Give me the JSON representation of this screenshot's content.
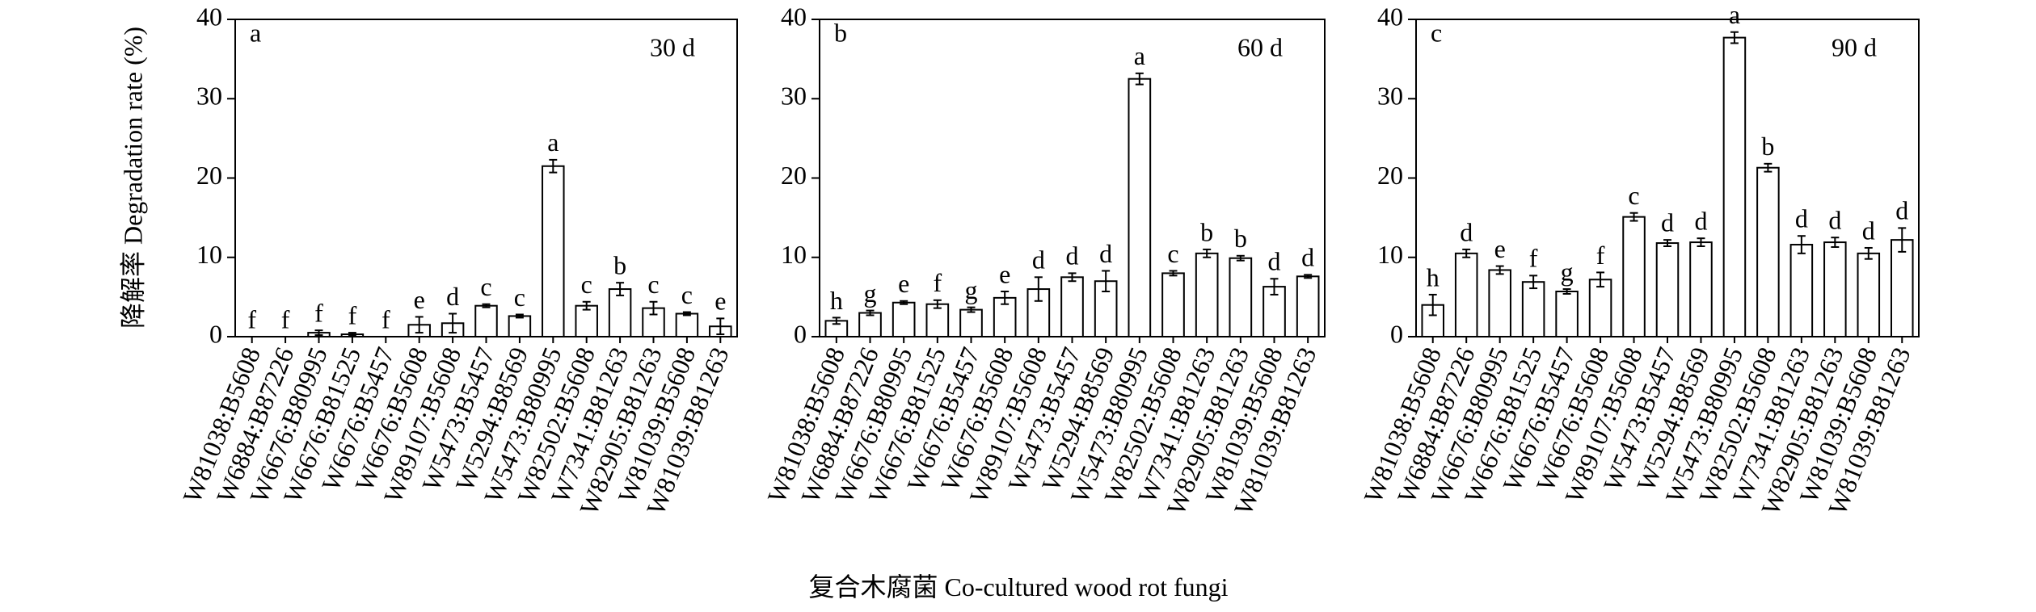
{
  "y_label": "降解率 Degradation rate (%)",
  "x_label": "复合木腐菌 Co-cultured wood rot fungi",
  "chart_data": [
    {
      "type": "bar",
      "panel": "a",
      "annotation": "30 d",
      "color": "#ffffff",
      "edge_color": "#000000",
      "categories": [
        "W81038:B5608",
        "W6884:B87226",
        "W6676:B80995",
        "W6676:B81525",
        "W6676:B5457",
        "W6676:B5608",
        "W89107:B5608",
        "W5473:B5457",
        "W5294:B8569",
        "W5473:B80995",
        "W82502:B5608",
        "W7341:B81263",
        "W82905:B81263",
        "W81039:B5608",
        "W81039:B81263"
      ],
      "values": [
        0,
        0,
        0.5,
        0.3,
        0,
        1.5,
        1.7,
        3.9,
        2.6,
        21.5,
        3.9,
        6.0,
        3.6,
        2.9,
        1.3
      ],
      "errors": [
        0,
        0,
        0.3,
        0.2,
        0,
        1.0,
        1.2,
        0.2,
        0.2,
        0.8,
        0.5,
        0.8,
        0.8,
        0.2,
        1.0
      ],
      "significance": [
        "f",
        "f",
        "f",
        "f",
        "f",
        "e",
        "d",
        "c",
        "c",
        "a",
        "c",
        "b",
        "c",
        "c",
        "e"
      ],
      "ylim": [
        0,
        40
      ],
      "yticks": [
        0,
        10,
        20,
        30,
        40
      ]
    },
    {
      "type": "bar",
      "panel": "b",
      "annotation": "60 d",
      "color": "#ffffff",
      "edge_color": "#000000",
      "categories": [
        "W81038:B5608",
        "W6884:B87226",
        "W6676:B80995",
        "W6676:B81525",
        "W6676:B5457",
        "W6676:B5608",
        "W89107:B5608",
        "W5473:B5457",
        "W5294:B8569",
        "W5473:B80995",
        "W82502:B5608",
        "W7341:B81263",
        "W82905:B81263",
        "W81039:B5608",
        "W81039:B81263"
      ],
      "values": [
        2.0,
        3.0,
        4.3,
        4.1,
        3.4,
        4.9,
        6.0,
        7.5,
        7.0,
        32.5,
        8.0,
        10.5,
        9.9,
        6.3,
        7.6
      ],
      "errors": [
        0.4,
        0.3,
        0.2,
        0.5,
        0.3,
        0.8,
        1.5,
        0.5,
        1.3,
        0.7,
        0.3,
        0.5,
        0.3,
        1.0,
        0.2
      ],
      "significance": [
        "h",
        "g",
        "e",
        "f",
        "g",
        "e",
        "d",
        "d",
        "d",
        "a",
        "c",
        "b",
        "b",
        "d",
        "d"
      ],
      "ylim": [
        0,
        40
      ],
      "yticks": [
        0,
        10,
        20,
        30,
        40
      ]
    },
    {
      "type": "bar",
      "panel": "c",
      "annotation": "90 d",
      "color": "#ffffff",
      "edge_color": "#000000",
      "categories": [
        "W81038:B5608",
        "W6884:B87226",
        "W6676:B80995",
        "W6676:B81525",
        "W6676:B5457",
        "W6676:B5608",
        "W89107:B5608",
        "W5473:B5457",
        "W5294:B8569",
        "W5473:B80995",
        "W82502:B5608",
        "W7341:B81263",
        "W82905:B81263",
        "W81039:B5608",
        "W81039:B81263"
      ],
      "values": [
        4.0,
        10.5,
        8.4,
        6.9,
        5.7,
        7.2,
        15.1,
        11.8,
        11.9,
        37.7,
        21.3,
        11.6,
        11.9,
        10.5,
        12.2
      ],
      "errors": [
        1.3,
        0.5,
        0.5,
        0.8,
        0.3,
        0.9,
        0.5,
        0.4,
        0.5,
        0.7,
        0.5,
        1.1,
        0.6,
        0.7,
        1.5
      ],
      "significance": [
        "h",
        "d",
        "e",
        "f",
        "g",
        "f",
        "c",
        "d",
        "d",
        "a",
        "b",
        "d",
        "d",
        "d",
        "d"
      ],
      "ylim": [
        0,
        40
      ],
      "yticks": [
        0,
        10,
        20,
        30,
        40
      ]
    }
  ]
}
